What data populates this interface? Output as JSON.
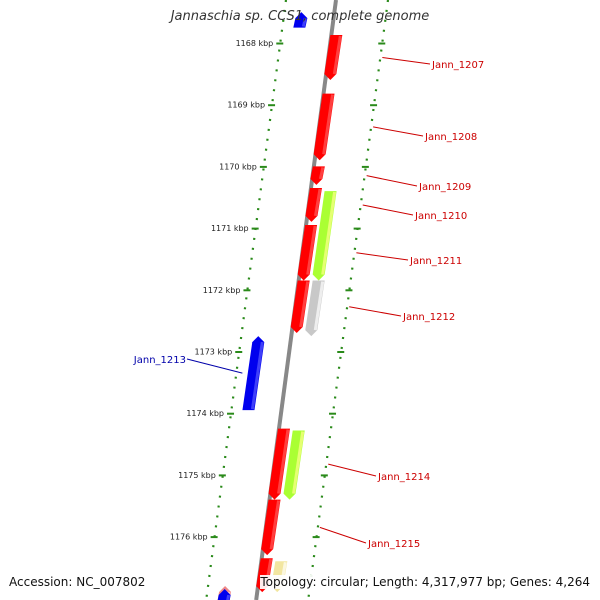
{
  "title": "Jannaschia sp. CCS1, complete genome",
  "footer": {
    "accession": "Accession: NC_007802",
    "summary": "Topology: circular; Length: 4,317,977 bp; Genes: 4,264"
  },
  "colors": {
    "backbone": "#888888",
    "tick": "#2a8a1a",
    "forward_label": "#cc0000",
    "reverse_label": "#0000aa",
    "gene_red": "#ff0000",
    "gene_lime": "#aaff33",
    "gene_gray": "#c8c8c8",
    "gene_blue": "#0000ee",
    "gene_pink": "#ee8888",
    "gene_yellow": "#f2e6a0"
  },
  "ticks": [
    {
      "kbp": 1168,
      "label": "1168 kbp"
    },
    {
      "kbp": 1169,
      "label": "1169 kbp"
    },
    {
      "kbp": 1170,
      "label": "1170 kbp"
    },
    {
      "kbp": 1171,
      "label": "1171 kbp"
    },
    {
      "kbp": 1172,
      "label": "1172 kbp"
    },
    {
      "kbp": 1173,
      "label": "1173 kbp"
    },
    {
      "kbp": 1174,
      "label": "1174 kbp"
    },
    {
      "kbp": 1175,
      "label": "1175 kbp"
    },
    {
      "kbp": 1176,
      "label": "1176 kbp"
    }
  ],
  "genes": [
    {
      "name": "Jann_1207",
      "strand": "+",
      "start_kbp": 1167.87,
      "end_kbp": 1168.6,
      "color": "gene_red",
      "labeled": true
    },
    {
      "name": "Jann_1208",
      "strand": "+",
      "start_kbp": 1168.82,
      "end_kbp": 1169.9,
      "color": "gene_red",
      "labeled": true
    },
    {
      "name": "Jann_1209",
      "strand": "+",
      "start_kbp": 1170.0,
      "end_kbp": 1170.3,
      "color": "gene_red",
      "labeled": true
    },
    {
      "name": "Jann_1210",
      "strand": "+",
      "start_kbp": 1170.35,
      "end_kbp": 1170.9,
      "color": "gene_red",
      "labeled": true
    },
    {
      "name": "",
      "strand": "+",
      "start_kbp": 1170.4,
      "end_kbp": 1171.85,
      "color": "gene_lime",
      "labeled": false
    },
    {
      "name": "Jann_1211",
      "strand": "+",
      "start_kbp": 1170.95,
      "end_kbp": 1171.85,
      "color": "gene_red",
      "labeled": true
    },
    {
      "name": "",
      "strand": "+",
      "start_kbp": 1171.85,
      "end_kbp": 1172.75,
      "color": "gene_gray",
      "labeled": false
    },
    {
      "name": "Jann_1212",
      "strand": "+",
      "start_kbp": 1171.85,
      "end_kbp": 1172.7,
      "color": "gene_red",
      "labeled": true
    },
    {
      "name": "Jann_1213",
      "strand": "-",
      "start_kbp": 1172.75,
      "end_kbp": 1173.95,
      "color": "gene_blue",
      "labeled": true
    },
    {
      "name": "",
      "strand": "+",
      "start_kbp": 1174.28,
      "end_kbp": 1175.4,
      "color": "gene_lime",
      "labeled": false
    },
    {
      "name": "Jann_1214",
      "strand": "+",
      "start_kbp": 1174.25,
      "end_kbp": 1175.4,
      "color": "gene_red",
      "labeled": true
    },
    {
      "name": "Jann_1215",
      "strand": "+",
      "start_kbp": 1175.4,
      "end_kbp": 1176.3,
      "color": "gene_red",
      "labeled": true
    },
    {
      "name": "",
      "strand": "+",
      "start_kbp": 1176.35,
      "end_kbp": 1176.9,
      "color": "gene_red",
      "labeled": false
    },
    {
      "name": "",
      "strand": "+",
      "start_kbp": 1176.4,
      "end_kbp": 1176.9,
      "color": "gene_yellow",
      "labeled": false
    },
    {
      "name": "",
      "strand": "-",
      "start_kbp": 1176.8,
      "end_kbp": 1177.2,
      "color": "gene_pink",
      "labeled": false
    },
    {
      "name": "",
      "strand": "-",
      "start_kbp": 1176.85,
      "end_kbp": 1177.2,
      "color": "gene_blue",
      "labeled": false
    },
    {
      "name": "",
      "strand": "-",
      "start_kbp": 1167.5,
      "end_kbp": 1167.75,
      "color": "gene_blue",
      "labeled": false
    }
  ]
}
